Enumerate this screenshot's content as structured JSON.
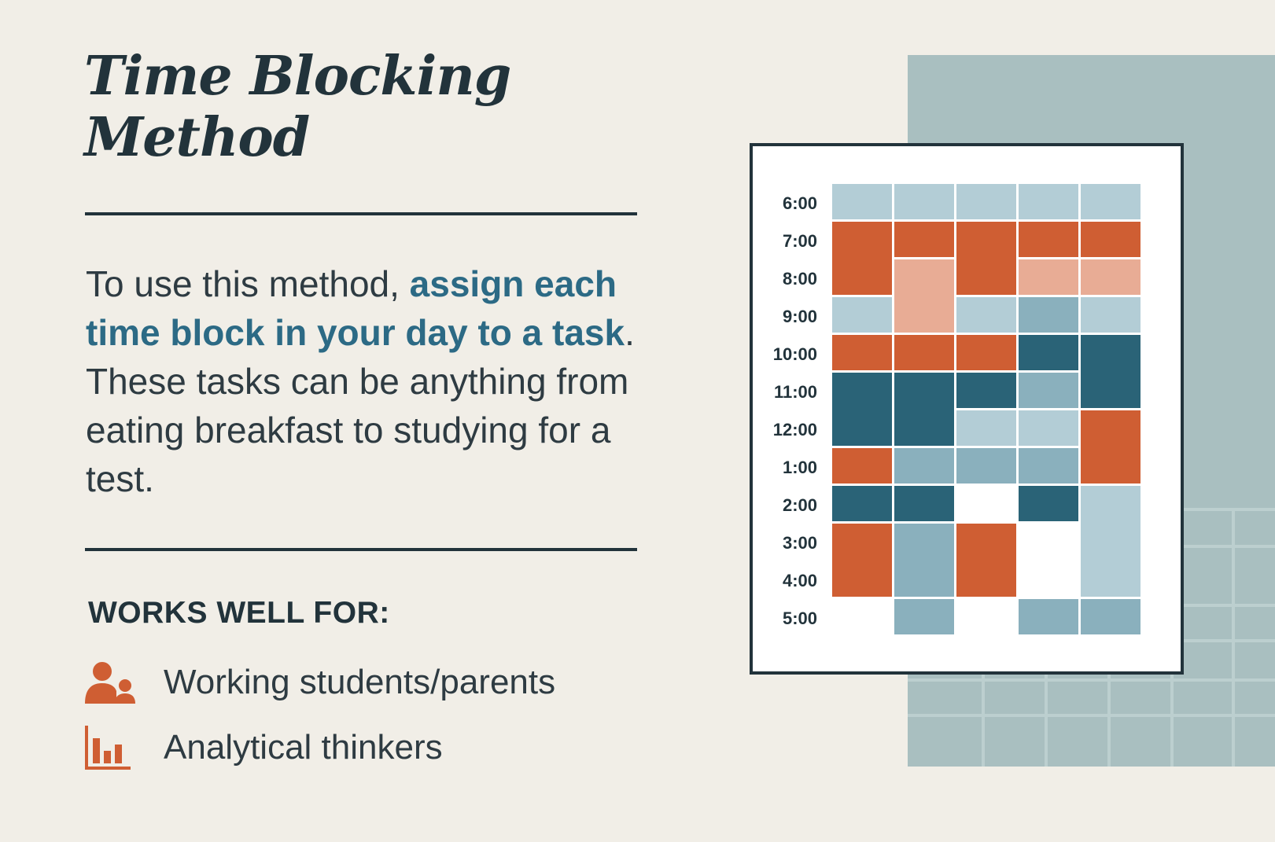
{
  "title": {
    "line1": "Time Blocking",
    "line2": "Method"
  },
  "description": {
    "part1": "To use this method, ",
    "highlight": "assign each time block in your day to a task",
    "part2": ". These tasks can be anything from eating breakfast to studying for a test."
  },
  "works_well_for": {
    "label": "WORKS WELL FOR:",
    "items": [
      {
        "label": "Working students/parents",
        "icon": "people-icon"
      },
      {
        "label": "Analytical thinkers",
        "icon": "bar-chart-icon"
      }
    ]
  },
  "colors": {
    "orange": "#cf5e33",
    "peach": "#e8ac95",
    "light_blue": "#b3cdd6",
    "mid_blue": "#8ab0bd",
    "dark_teal": "#2a6377",
    "panel": "#a9bfc0",
    "ink": "#22333b",
    "accent_text": "#2c6a85"
  },
  "schedule": {
    "times": [
      "6:00",
      "7:00",
      "8:00",
      "9:00",
      "10:00",
      "11:00",
      "12:00",
      "1:00",
      "2:00",
      "3:00",
      "4:00",
      "5:00"
    ],
    "columns": 5,
    "blocks": [
      {
        "col": 0,
        "start": 0,
        "span": 1,
        "color": "light_blue"
      },
      {
        "col": 1,
        "start": 0,
        "span": 1,
        "color": "light_blue"
      },
      {
        "col": 2,
        "start": 0,
        "span": 1,
        "color": "light_blue"
      },
      {
        "col": 3,
        "start": 0,
        "span": 1,
        "color": "light_blue"
      },
      {
        "col": 4,
        "start": 0,
        "span": 1,
        "color": "light_blue"
      },
      {
        "col": 0,
        "start": 1,
        "span": 2,
        "color": "orange"
      },
      {
        "col": 1,
        "start": 1,
        "span": 1,
        "color": "orange"
      },
      {
        "col": 2,
        "start": 1,
        "span": 2,
        "color": "orange"
      },
      {
        "col": 3,
        "start": 1,
        "span": 1,
        "color": "orange"
      },
      {
        "col": 4,
        "start": 1,
        "span": 1,
        "color": "orange"
      },
      {
        "col": 1,
        "start": 2,
        "span": 2,
        "color": "peach"
      },
      {
        "col": 3,
        "start": 2,
        "span": 1,
        "color": "peach"
      },
      {
        "col": 4,
        "start": 2,
        "span": 1,
        "color": "peach"
      },
      {
        "col": 0,
        "start": 3,
        "span": 1,
        "color": "light_blue"
      },
      {
        "col": 2,
        "start": 3,
        "span": 1,
        "color": "light_blue"
      },
      {
        "col": 3,
        "start": 3,
        "span": 1,
        "color": "mid_blue"
      },
      {
        "col": 4,
        "start": 3,
        "span": 1,
        "color": "light_blue"
      },
      {
        "col": 0,
        "start": 4,
        "span": 1,
        "color": "orange"
      },
      {
        "col": 1,
        "start": 4,
        "span": 1,
        "color": "orange"
      },
      {
        "col": 2,
        "start": 4,
        "span": 1,
        "color": "orange"
      },
      {
        "col": 3,
        "start": 4,
        "span": 1,
        "color": "dark_teal"
      },
      {
        "col": 4,
        "start": 4,
        "span": 2,
        "color": "dark_teal"
      },
      {
        "col": 0,
        "start": 5,
        "span": 2,
        "color": "dark_teal"
      },
      {
        "col": 1,
        "start": 5,
        "span": 2,
        "color": "dark_teal"
      },
      {
        "col": 2,
        "start": 5,
        "span": 1,
        "color": "dark_teal"
      },
      {
        "col": 3,
        "start": 5,
        "span": 1,
        "color": "mid_blue"
      },
      {
        "col": 2,
        "start": 6,
        "span": 1,
        "color": "light_blue"
      },
      {
        "col": 3,
        "start": 6,
        "span": 1,
        "color": "light_blue"
      },
      {
        "col": 4,
        "start": 6,
        "span": 2,
        "color": "orange"
      },
      {
        "col": 0,
        "start": 7,
        "span": 1,
        "color": "orange"
      },
      {
        "col": 1,
        "start": 7,
        "span": 1,
        "color": "mid_blue"
      },
      {
        "col": 2,
        "start": 7,
        "span": 1,
        "color": "mid_blue"
      },
      {
        "col": 3,
        "start": 7,
        "span": 1,
        "color": "mid_blue"
      },
      {
        "col": 0,
        "start": 8,
        "span": 1,
        "color": "dark_teal"
      },
      {
        "col": 1,
        "start": 8,
        "span": 1,
        "color": "dark_teal"
      },
      {
        "col": 3,
        "start": 8,
        "span": 1,
        "color": "dark_teal"
      },
      {
        "col": 4,
        "start": 8,
        "span": 3,
        "color": "light_blue"
      },
      {
        "col": 0,
        "start": 9,
        "span": 2,
        "color": "orange"
      },
      {
        "col": 1,
        "start": 9,
        "span": 2,
        "color": "mid_blue"
      },
      {
        "col": 2,
        "start": 9,
        "span": 2,
        "color": "orange"
      },
      {
        "col": 1,
        "start": 11,
        "span": 1,
        "color": "mid_blue"
      },
      {
        "col": 3,
        "start": 11,
        "span": 1,
        "color": "mid_blue"
      },
      {
        "col": 4,
        "start": 11,
        "span": 1,
        "color": "mid_blue"
      }
    ]
  }
}
